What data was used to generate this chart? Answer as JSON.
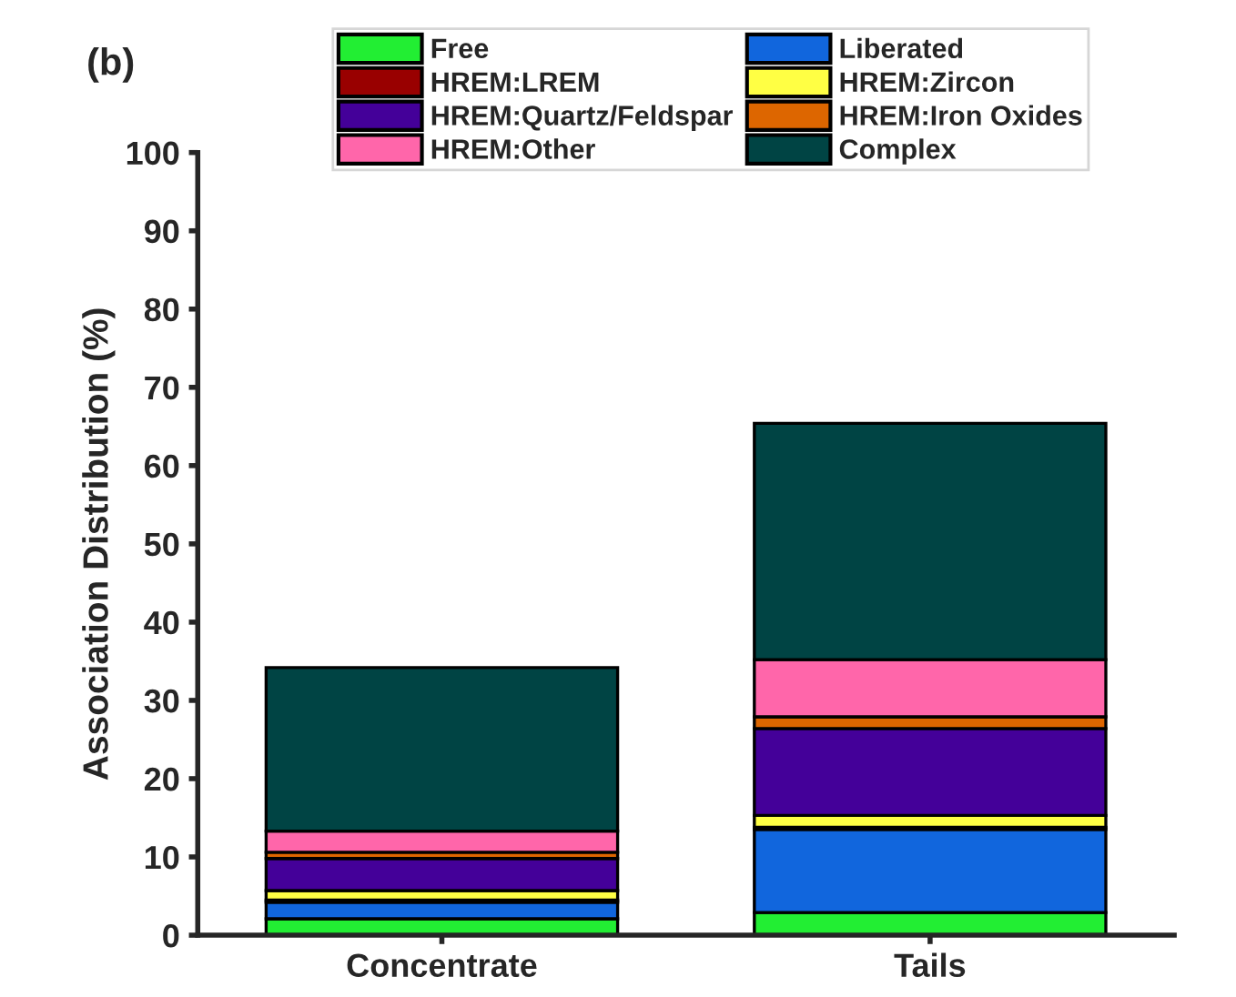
{
  "chart_data": {
    "type": "bar",
    "title": "(b)",
    "ylabel": "Association Distribution (%)",
    "categories": [
      "Concentrate",
      "Tails"
    ],
    "stacked": true,
    "series": [
      {
        "name": "Free",
        "color": "#22ee33",
        "values": [
          2.1,
          2.9
        ]
      },
      {
        "name": "Liberated",
        "color": "#1166dd",
        "values": [
          2.1,
          10.6
        ]
      },
      {
        "name": "HREM:LREM",
        "color": "#990000",
        "values": [
          0.3,
          0.3
        ]
      },
      {
        "name": "HREM:Zircon",
        "color": "#ffff44",
        "values": [
          1.2,
          1.5
        ]
      },
      {
        "name": "HREM:Quartz/Feldspar",
        "color": "#440099",
        "values": [
          4.1,
          11.1
        ]
      },
      {
        "name": "HREM:Iron Oxides",
        "color": "#dd6600",
        "values": [
          0.8,
          1.5
        ]
      },
      {
        "name": "HREM:Other",
        "color": "#ff66aa",
        "values": [
          2.7,
          7.3
        ]
      },
      {
        "name": "Complex",
        "color": "#004444",
        "values": [
          20.9,
          30.2
        ]
      }
    ],
    "ylim": [
      0,
      100
    ],
    "yticks": [
      0,
      10,
      20,
      30,
      40,
      50,
      60,
      70,
      80,
      90,
      100
    ],
    "grid": false,
    "legend": "top"
  }
}
